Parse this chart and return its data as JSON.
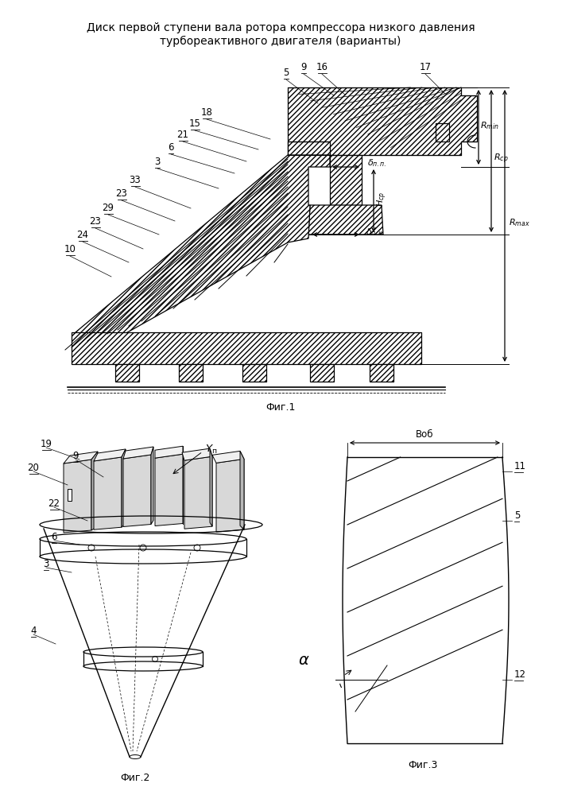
{
  "title_line1": "Диск первой ступени вала ротора компрессора низкого давления",
  "title_line2": "турбореактивного двигателя (варианты)",
  "fig1_label": "Фиг.1",
  "fig2_label": "Фиг.2",
  "fig3_label": "Фиг.3",
  "bg_color": "#ffffff",
  "line_color": "#000000",
  "title_fontsize": 10,
  "label_fontsize": 8.5,
  "fig_label_fontsize": 9,
  "annotation_fontsize": 8
}
